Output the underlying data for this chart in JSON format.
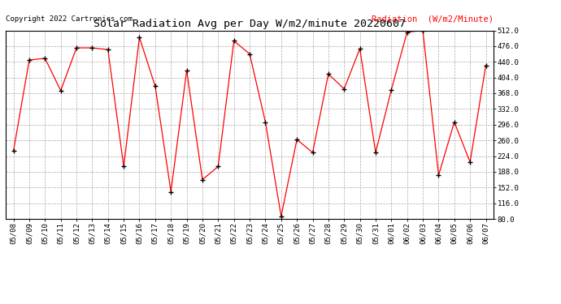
{
  "title": "Solar Radiation Avg per Day W/m2/minute 20220607",
  "copyright": "Copyright 2022 Cartronics.com",
  "legend_label": "Radiation  (W/m2/Minute)",
  "dates": [
    "05/08",
    "05/09",
    "05/10",
    "05/11",
    "05/12",
    "05/13",
    "05/14",
    "05/15",
    "05/16",
    "05/17",
    "05/18",
    "05/19",
    "05/20",
    "05/21",
    "05/22",
    "05/23",
    "05/24",
    "05/25",
    "05/26",
    "05/27",
    "05/28",
    "05/29",
    "05/30",
    "05/31",
    "06/01",
    "06/02",
    "06/03",
    "06/04",
    "06/05",
    "06/06",
    "06/07"
  ],
  "values": [
    236,
    444,
    448,
    374,
    472,
    472,
    468,
    200,
    496,
    384,
    142,
    420,
    170,
    200,
    488,
    458,
    302,
    86,
    262,
    232,
    412,
    378,
    470,
    232,
    376,
    508,
    512,
    180,
    302,
    210,
    432
  ],
  "line_color": "red",
  "marker": "+",
  "marker_color": "black",
  "bg_color": "white",
  "grid_color": "#aaaaaa",
  "ylim_min": 80.0,
  "ylim_max": 512.0,
  "yticks": [
    80.0,
    116.0,
    152.0,
    188.0,
    224.0,
    260.0,
    296.0,
    332.0,
    368.0,
    404.0,
    440.0,
    476.0,
    512.0
  ],
  "title_fontsize": 9.5,
  "copyright_fontsize": 6.5,
  "legend_fontsize": 7.5,
  "tick_fontsize": 6.5,
  "fig_width": 6.9,
  "fig_height": 3.75,
  "fig_dpi": 100
}
